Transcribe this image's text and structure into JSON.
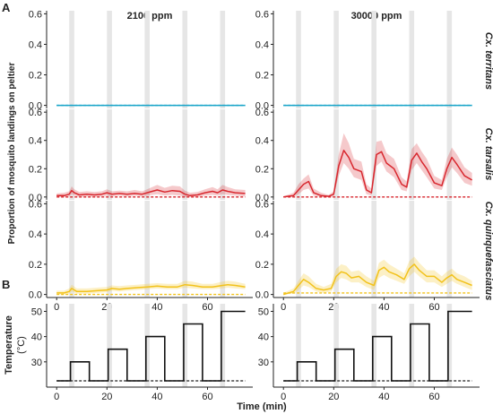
{
  "panel_labels": {
    "a": "A",
    "b": "B"
  },
  "chart_data": [
    {
      "type": "line",
      "panel": "A",
      "columns": [
        "2100 ppm",
        "30000 ppm"
      ],
      "rows": [
        "Cx. territans",
        "Cx. tarsalis",
        "Cx. quinquefasciatus"
      ],
      "ylabel": "Proportion of mosquito landings on peltier",
      "xlim": [
        -4,
        78
      ],
      "ylim": [
        -0.02,
        0.62
      ],
      "yticks": [
        0.0,
        0.2,
        0.4,
        0.6
      ],
      "ytick_labels": [
        "0.0",
        "0.2",
        "0.4",
        "0.6"
      ],
      "heat_periods": [
        [
          5,
          7
        ],
        [
          20,
          22
        ],
        [
          35,
          37
        ],
        [
          50,
          52
        ],
        [
          65,
          67
        ]
      ],
      "colors": {
        "Cx. territans": "#1aa5c9",
        "Cx. tarsalis": "#d8272e",
        "Cx. quinquefasciatus": "#f2c21b"
      },
      "panels": [
        {
          "row": "Cx. territans",
          "column": "2100 ppm",
          "x": [
            0,
            75
          ],
          "mean": [
            0.0,
            0.0
          ],
          "lower": [
            0.0,
            0.0
          ],
          "upper": [
            0.0,
            0.0
          ],
          "control": [
            0.0,
            0.0
          ]
        },
        {
          "row": "Cx. territans",
          "column": "30000 ppm",
          "x": [
            0,
            75
          ],
          "mean": [
            0.0,
            0.0
          ],
          "lower": [
            0.0,
            0.0
          ],
          "upper": [
            0.0,
            0.0
          ],
          "control": [
            0.0,
            0.0
          ]
        },
        {
          "row": "Cx. tarsalis",
          "column": "2100 ppm",
          "x": [
            0,
            3,
            5,
            6,
            7,
            9,
            12,
            15,
            18,
            20,
            22,
            25,
            28,
            31,
            34,
            36,
            38,
            40,
            43,
            46,
            49,
            51,
            53,
            56,
            59,
            62,
            64,
            66,
            68,
            71,
            75
          ],
          "mean": [
            0.01,
            0.01,
            0.02,
            0.045,
            0.03,
            0.015,
            0.02,
            0.015,
            0.02,
            0.03,
            0.02,
            0.025,
            0.02,
            0.025,
            0.02,
            0.03,
            0.04,
            0.05,
            0.035,
            0.045,
            0.04,
            0.02,
            0.01,
            0.015,
            0.03,
            0.04,
            0.03,
            0.05,
            0.04,
            0.03,
            0.025
          ],
          "lower": [
            0.0,
            0.0,
            0.005,
            0.02,
            0.01,
            0.0,
            0.005,
            0.0,
            0.005,
            0.01,
            0.005,
            0.01,
            0.005,
            0.01,
            0.005,
            0.01,
            0.015,
            0.02,
            0.01,
            0.015,
            0.01,
            0.0,
            0.0,
            0.0,
            0.01,
            0.015,
            0.01,
            0.02,
            0.015,
            0.01,
            0.005
          ],
          "upper": [
            0.025,
            0.03,
            0.04,
            0.075,
            0.055,
            0.035,
            0.04,
            0.035,
            0.04,
            0.055,
            0.04,
            0.045,
            0.04,
            0.05,
            0.04,
            0.055,
            0.07,
            0.085,
            0.065,
            0.08,
            0.075,
            0.045,
            0.03,
            0.035,
            0.055,
            0.07,
            0.055,
            0.085,
            0.07,
            0.055,
            0.05
          ],
          "control": [
            0.0,
            0.0
          ]
        },
        {
          "row": "Cx. tarsalis",
          "column": "30000 ppm",
          "x": [
            0,
            4,
            6,
            8,
            10,
            12,
            15,
            18,
            20,
            22,
            24,
            26,
            28,
            31,
            33,
            35,
            37,
            39,
            41,
            44,
            47,
            49,
            51,
            53,
            55,
            57,
            60,
            63,
            65,
            67,
            69,
            72,
            75
          ],
          "mean": [
            0.0,
            0.01,
            0.05,
            0.09,
            0.11,
            0.03,
            0.01,
            0.005,
            0.02,
            0.22,
            0.33,
            0.28,
            0.2,
            0.18,
            0.05,
            0.03,
            0.3,
            0.32,
            0.24,
            0.2,
            0.09,
            0.07,
            0.26,
            0.31,
            0.25,
            0.2,
            0.1,
            0.08,
            0.2,
            0.28,
            0.23,
            0.15,
            0.12
          ],
          "lower": [
            0.0,
            0.0,
            0.02,
            0.05,
            0.06,
            0.01,
            0.0,
            0.0,
            0.005,
            0.15,
            0.24,
            0.2,
            0.14,
            0.12,
            0.02,
            0.01,
            0.22,
            0.25,
            0.18,
            0.14,
            0.05,
            0.04,
            0.19,
            0.24,
            0.19,
            0.14,
            0.06,
            0.05,
            0.14,
            0.21,
            0.17,
            0.1,
            0.08
          ],
          "upper": [
            0.005,
            0.03,
            0.09,
            0.13,
            0.16,
            0.06,
            0.03,
            0.015,
            0.04,
            0.3,
            0.45,
            0.38,
            0.27,
            0.25,
            0.09,
            0.06,
            0.39,
            0.4,
            0.31,
            0.27,
            0.14,
            0.11,
            0.34,
            0.38,
            0.32,
            0.27,
            0.15,
            0.12,
            0.27,
            0.35,
            0.3,
            0.21,
            0.17
          ],
          "control": [
            0.0,
            0.0
          ]
        },
        {
          "row": "Cx. quinquefasciatus",
          "column": "2100 ppm",
          "x": [
            0,
            3,
            5,
            6,
            8,
            12,
            16,
            20,
            22,
            25,
            28,
            32,
            36,
            40,
            44,
            48,
            51,
            54,
            58,
            62,
            66,
            68,
            71,
            75
          ],
          "mean": [
            0.01,
            0.01,
            0.02,
            0.04,
            0.02,
            0.02,
            0.025,
            0.03,
            0.04,
            0.035,
            0.04,
            0.045,
            0.05,
            0.055,
            0.05,
            0.05,
            0.065,
            0.06,
            0.05,
            0.05,
            0.06,
            0.065,
            0.06,
            0.05
          ],
          "lower": [
            0.0,
            0.0,
            0.005,
            0.02,
            0.005,
            0.005,
            0.01,
            0.015,
            0.025,
            0.02,
            0.025,
            0.03,
            0.035,
            0.04,
            0.035,
            0.035,
            0.045,
            0.04,
            0.035,
            0.035,
            0.04,
            0.045,
            0.04,
            0.035
          ],
          "upper": [
            0.025,
            0.025,
            0.04,
            0.065,
            0.04,
            0.04,
            0.045,
            0.05,
            0.06,
            0.055,
            0.06,
            0.065,
            0.07,
            0.075,
            0.07,
            0.07,
            0.09,
            0.085,
            0.07,
            0.07,
            0.085,
            0.09,
            0.085,
            0.07
          ],
          "control": [
            0.0,
            0.0
          ]
        },
        {
          "row": "Cx. quinquefasciatus",
          "column": "30000 ppm",
          "x": [
            0,
            4,
            6,
            8,
            10,
            13,
            16,
            19,
            21,
            23,
            25,
            27,
            30,
            33,
            36,
            38,
            40,
            42,
            45,
            48,
            50,
            52,
            54,
            57,
            60,
            63,
            65,
            67,
            69,
            72,
            75
          ],
          "mean": [
            0.0,
            0.02,
            0.06,
            0.1,
            0.08,
            0.04,
            0.03,
            0.04,
            0.12,
            0.15,
            0.14,
            0.11,
            0.12,
            0.08,
            0.06,
            0.16,
            0.18,
            0.15,
            0.13,
            0.1,
            0.17,
            0.2,
            0.16,
            0.12,
            0.12,
            0.08,
            0.11,
            0.13,
            0.1,
            0.08,
            0.06
          ],
          "lower": [
            0.0,
            0.005,
            0.03,
            0.06,
            0.05,
            0.02,
            0.01,
            0.02,
            0.08,
            0.11,
            0.1,
            0.08,
            0.08,
            0.05,
            0.03,
            0.11,
            0.13,
            0.11,
            0.09,
            0.07,
            0.12,
            0.15,
            0.12,
            0.08,
            0.08,
            0.05,
            0.07,
            0.09,
            0.07,
            0.05,
            0.03
          ],
          "upper": [
            0.01,
            0.04,
            0.09,
            0.14,
            0.12,
            0.07,
            0.05,
            0.07,
            0.17,
            0.2,
            0.19,
            0.15,
            0.16,
            0.12,
            0.09,
            0.21,
            0.23,
            0.2,
            0.17,
            0.14,
            0.22,
            0.25,
            0.21,
            0.16,
            0.16,
            0.12,
            0.15,
            0.17,
            0.14,
            0.12,
            0.09
          ],
          "control": [
            0.01,
            0.01
          ]
        }
      ],
      "xticks": [
        0,
        20,
        40,
        60
      ],
      "xtick_labels": [
        "0",
        "20",
        "40",
        "60"
      ]
    },
    {
      "type": "line",
      "panel": "B",
      "ylabel": "Temperature\n(°C)",
      "xlabel": "Time (min)",
      "xlim": [
        -4,
        78
      ],
      "ylim": [
        20,
        53
      ],
      "yticks": [
        30,
        40,
        50
      ],
      "ytick_labels": [
        "30",
        "40",
        "50"
      ],
      "xticks": [
        0,
        20,
        40,
        60
      ],
      "xtick_labels": [
        "0",
        "20",
        "40",
        "60"
      ],
      "heat_periods": [
        [
          5,
          7
        ],
        [
          20,
          22
        ],
        [
          35,
          37
        ],
        [
          50,
          52
        ],
        [
          65,
          67
        ]
      ],
      "temperature": {
        "x": [
          0,
          5.5,
          5.5,
          13,
          13,
          20.5,
          20.5,
          28,
          28,
          35.5,
          35.5,
          43,
          43,
          50.5,
          50.5,
          58,
          58,
          65.5,
          65.5,
          75
        ],
        "y": [
          22.5,
          22.5,
          30,
          30,
          22.5,
          22.5,
          35,
          35,
          22.5,
          22.5,
          40,
          40,
          22.5,
          22.5,
          45,
          45,
          22.5,
          22.5,
          50,
          50
        ]
      },
      "baseline": {
        "x": [
          0,
          75
        ],
        "y": [
          22.5,
          22.5
        ]
      }
    }
  ]
}
